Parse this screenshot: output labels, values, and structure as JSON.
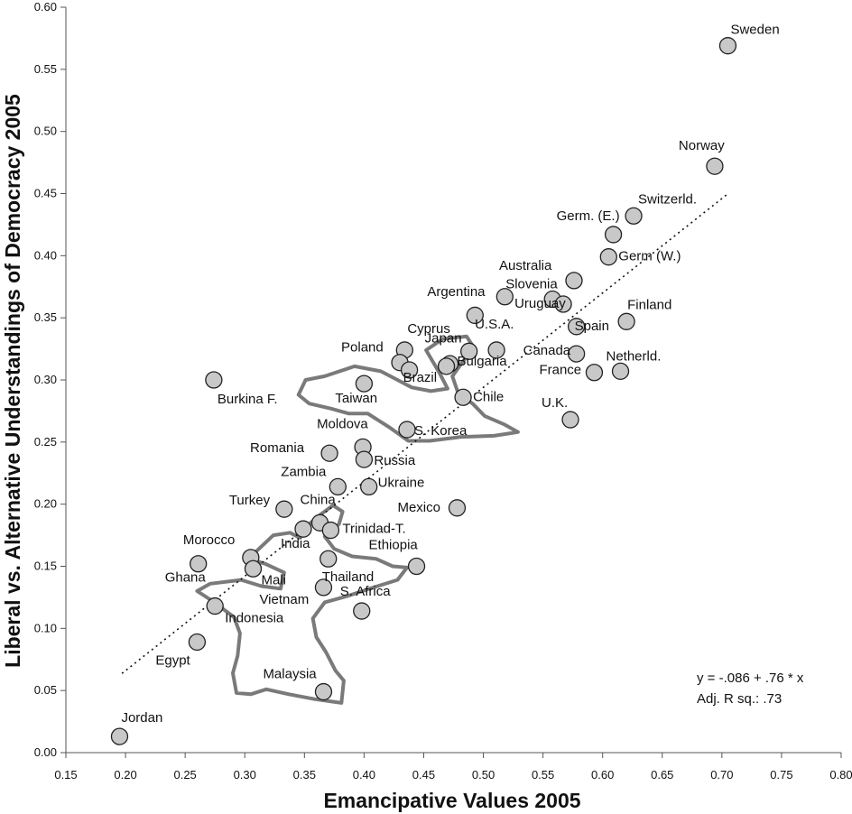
{
  "chart_data": {
    "type": "scatter",
    "xlabel": "Emancipative Values 2005",
    "ylabel": "Liberal vs. Alternative Understandings of Democracy 2005",
    "xlim": [
      0.15,
      0.8
    ],
    "ylim": [
      0.0,
      0.6
    ],
    "x_ticks": [
      "0.15",
      "0.20",
      "0.25",
      "0.30",
      "0.35",
      "0.40",
      "0.45",
      "0.50",
      "0.55",
      "0.60",
      "0.65",
      "0.70",
      "0.75",
      "0.80"
    ],
    "y_ticks": [
      "0.00",
      "0.05",
      "0.10",
      "0.15",
      "0.20",
      "0.25",
      "0.30",
      "0.35",
      "0.40",
      "0.45",
      "0.50",
      "0.55",
      "0.60"
    ],
    "grid": false,
    "marker_fill": "#c8c8c8",
    "marker_stroke": "#222222",
    "contour_color": "#7a7a7a",
    "regression": {
      "intercept": -0.086,
      "slope": 0.76,
      "x_range": [
        0.197,
        0.705
      ],
      "style": "dotted",
      "equation": "y = -.086 + .76 * x",
      "r2": "Adj. R sq.: .73"
    },
    "points": [
      {
        "label": "Sweden",
        "x": 0.705,
        "y": 0.569
      },
      {
        "label": "Norway",
        "x": 0.694,
        "y": 0.472
      },
      {
        "label": "Switzerld.",
        "x": 0.626,
        "y": 0.432
      },
      {
        "label": "Germ. (E.)",
        "x": 0.609,
        "y": 0.417
      },
      {
        "label": "Germ (W.)",
        "x": 0.605,
        "y": 0.399
      },
      {
        "label": "Australia",
        "x": 0.576,
        "y": 0.38
      },
      {
        "label": "Slovenia",
        "x": 0.558,
        "y": 0.365
      },
      {
        "label": "Argentina",
        "x": 0.518,
        "y": 0.367
      },
      {
        "label": "Uruguay",
        "x": 0.567,
        "y": 0.361
      },
      {
        "label": "Spain",
        "x": 0.578,
        "y": 0.343
      },
      {
        "label": "Finland",
        "x": 0.62,
        "y": 0.347
      },
      {
        "label": "",
        "x": 0.493,
        "y": 0.352
      },
      {
        "label": "Cyprus",
        "x": 0.434,
        "y": 0.324
      },
      {
        "label": "U.S.A.",
        "x": 0.511,
        "y": 0.324
      },
      {
        "label": "Japan",
        "x": 0.488,
        "y": 0.323
      },
      {
        "label": "Canada",
        "x": 0.578,
        "y": 0.321
      },
      {
        "label": "Netherld.",
        "x": 0.615,
        "y": 0.307
      },
      {
        "label": "France",
        "x": 0.593,
        "y": 0.306
      },
      {
        "label": "Poland",
        "x": 0.43,
        "y": 0.314
      },
      {
        "label": "",
        "x": 0.438,
        "y": 0.308
      },
      {
        "label": "Bulgaria",
        "x": 0.472,
        "y": 0.313
      },
      {
        "label": "Brazil",
        "x": 0.469,
        "y": 0.311
      },
      {
        "label": "Chile",
        "x": 0.483,
        "y": 0.286
      },
      {
        "label": "Taiwan",
        "x": 0.4,
        "y": 0.297
      },
      {
        "label": "Burkina F.",
        "x": 0.274,
        "y": 0.3
      },
      {
        "label": "U.K.",
        "x": 0.573,
        "y": 0.268
      },
      {
        "label": "S. Korea",
        "x": 0.436,
        "y": 0.26
      },
      {
        "label": "Moldova",
        "x": 0.399,
        "y": 0.246
      },
      {
        "label": "Romania",
        "x": 0.371,
        "y": 0.241
      },
      {
        "label": "Russia",
        "x": 0.4,
        "y": 0.236
      },
      {
        "label": "Zambia",
        "x": 0.378,
        "y": 0.214
      },
      {
        "label": "Ukraine",
        "x": 0.404,
        "y": 0.214
      },
      {
        "label": "Mexico",
        "x": 0.478,
        "y": 0.197
      },
      {
        "label": "Turkey",
        "x": 0.333,
        "y": 0.196
      },
      {
        "label": "China",
        "x": 0.363,
        "y": 0.185
      },
      {
        "label": "Trinidad-T.",
        "x": 0.372,
        "y": 0.179
      },
      {
        "label": "India",
        "x": 0.349,
        "y": 0.18
      },
      {
        "label": "Morocco",
        "x": 0.305,
        "y": 0.157
      },
      {
        "label": "Mali",
        "x": 0.307,
        "y": 0.148
      },
      {
        "label": "Ethiopia",
        "x": 0.444,
        "y": 0.15
      },
      {
        "label": "Thailand",
        "x": 0.37,
        "y": 0.156
      },
      {
        "label": "Ghana",
        "x": 0.261,
        "y": 0.152
      },
      {
        "label": "Vietnam",
        "x": 0.366,
        "y": 0.133
      },
      {
        "label": "Indonesia",
        "x": 0.275,
        "y": 0.118
      },
      {
        "label": "S. Africa",
        "x": 0.398,
        "y": 0.114
      },
      {
        "label": "Egypt",
        "x": 0.26,
        "y": 0.089
      },
      {
        "label": "Malaysia",
        "x": 0.366,
        "y": 0.049
      },
      {
        "label": "Jordan",
        "x": 0.195,
        "y": 0.013
      }
    ],
    "contours": [
      {
        "name": "east-asia",
        "path": [
          [
            0.367,
            0.303
          ],
          [
            0.392,
            0.311
          ],
          [
            0.414,
            0.307
          ],
          [
            0.428,
            0.3
          ],
          [
            0.44,
            0.294
          ],
          [
            0.456,
            0.291
          ],
          [
            0.47,
            0.293
          ],
          [
            0.463,
            0.306
          ],
          [
            0.452,
            0.324
          ],
          [
            0.466,
            0.333
          ],
          [
            0.486,
            0.335
          ],
          [
            0.492,
            0.326
          ],
          [
            0.483,
            0.315
          ],
          [
            0.474,
            0.303
          ],
          [
            0.479,
            0.289
          ],
          [
            0.491,
            0.281
          ],
          [
            0.501,
            0.271
          ],
          [
            0.518,
            0.264
          ],
          [
            0.529,
            0.258
          ],
          [
            0.509,
            0.255
          ],
          [
            0.48,
            0.254
          ],
          [
            0.455,
            0.251
          ],
          [
            0.437,
            0.251
          ],
          [
            0.421,
            0.262
          ],
          [
            0.403,
            0.273
          ],
          [
            0.387,
            0.273
          ],
          [
            0.372,
            0.277
          ],
          [
            0.354,
            0.281
          ],
          [
            0.345,
            0.288
          ],
          [
            0.351,
            0.3
          ],
          [
            0.367,
            0.303
          ]
        ]
      },
      {
        "name": "developing-asia",
        "path": [
          [
            0.364,
            0.192
          ],
          [
            0.374,
            0.199
          ],
          [
            0.382,
            0.194
          ],
          [
            0.379,
            0.184
          ],
          [
            0.367,
            0.174
          ],
          [
            0.375,
            0.164
          ],
          [
            0.39,
            0.158
          ],
          [
            0.41,
            0.156
          ],
          [
            0.424,
            0.15
          ],
          [
            0.436,
            0.149
          ],
          [
            0.428,
            0.139
          ],
          [
            0.408,
            0.133
          ],
          [
            0.386,
            0.126
          ],
          [
            0.367,
            0.121
          ],
          [
            0.357,
            0.108
          ],
          [
            0.36,
            0.093
          ],
          [
            0.368,
            0.081
          ],
          [
            0.376,
            0.066
          ],
          [
            0.383,
            0.058
          ],
          [
            0.381,
            0.04
          ],
          [
            0.359,
            0.043
          ],
          [
            0.337,
            0.047
          ],
          [
            0.318,
            0.051
          ],
          [
            0.305,
            0.047
          ],
          [
            0.293,
            0.048
          ],
          [
            0.29,
            0.064
          ],
          [
            0.294,
            0.078
          ],
          [
            0.296,
            0.096
          ],
          [
            0.291,
            0.109
          ],
          [
            0.273,
            0.122
          ],
          [
            0.26,
            0.13
          ],
          [
            0.271,
            0.136
          ],
          [
            0.297,
            0.139
          ],
          [
            0.314,
            0.134
          ],
          [
            0.33,
            0.132
          ],
          [
            0.333,
            0.145
          ],
          [
            0.317,
            0.152
          ],
          [
            0.303,
            0.156
          ],
          [
            0.324,
            0.175
          ],
          [
            0.338,
            0.177
          ],
          [
            0.346,
            0.173
          ],
          [
            0.354,
            0.184
          ],
          [
            0.364,
            0.192
          ]
        ]
      }
    ],
    "annotations": [
      "y = -.086 + .76 * x",
      "Adj. R sq.: .73"
    ]
  }
}
